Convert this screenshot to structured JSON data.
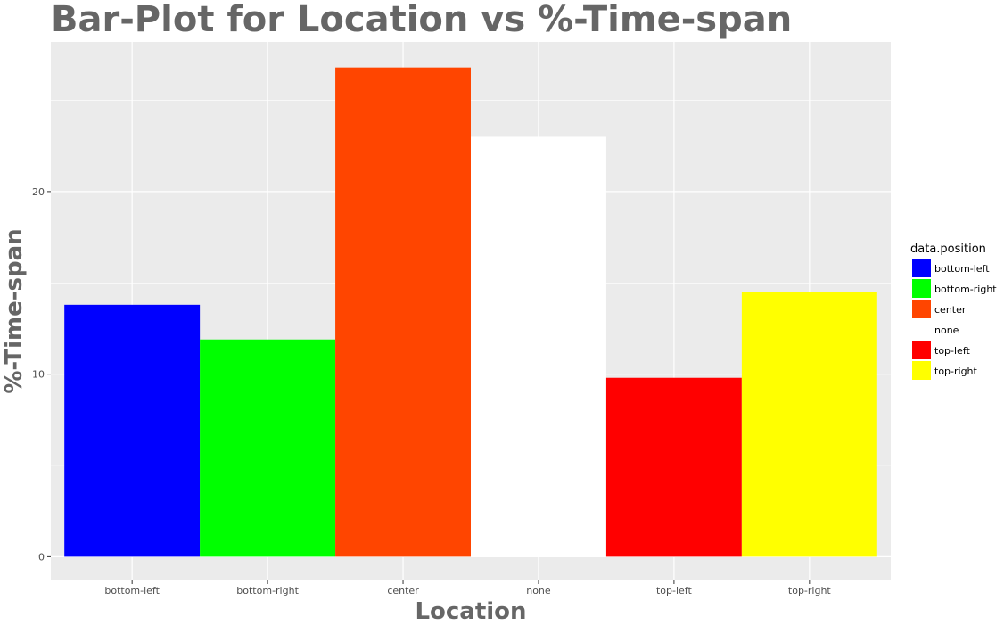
{
  "chart_data": {
    "type": "bar",
    "title": "Bar-Plot for Location vs %-Time-span",
    "xlabel": "Location",
    "ylabel": "%-Time-span",
    "categories": [
      "bottom-left",
      "bottom-right",
      "center",
      "none",
      "top-left",
      "top-right"
    ],
    "values": [
      13.8,
      11.9,
      26.8,
      23.0,
      9.8,
      14.5
    ],
    "colors": [
      "#0000ff",
      "#00ff00",
      "#ff4500",
      "#ffffff",
      "#ff0000",
      "#ffff00"
    ],
    "ylim": [
      -1.3,
      28.2
    ],
    "yticks": [
      0,
      10,
      20
    ],
    "ytick_labels": [
      "0",
      "10",
      "20"
    ],
    "grid": true,
    "panel_background": "#ebebeb",
    "grid_color": "#ffffff",
    "legend": {
      "title": "data.position",
      "placement": "right",
      "entries": [
        "bottom-left",
        "bottom-right",
        "center",
        "none",
        "top-left",
        "top-right"
      ]
    }
  }
}
